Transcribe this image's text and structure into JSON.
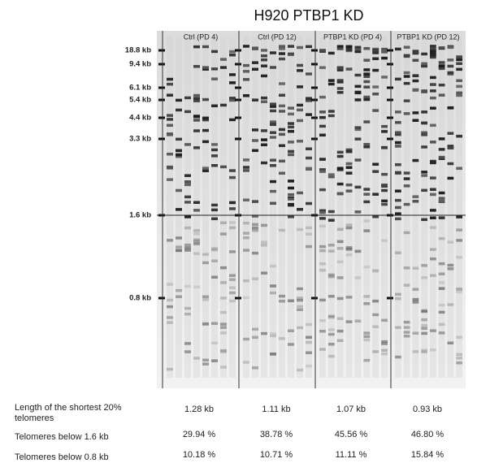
{
  "header": {
    "title": "H920 PTBP1 KD"
  },
  "lanes": [
    "Ctrl (PD 4)",
    "Ctrl (PD 12)",
    "PTBP1 KD (PD 4)",
    "PTBP1 KD (PD 12)"
  ],
  "markers": [
    "18.8 kb",
    "9.4 kb",
    "6.1 kb",
    "5.4 kb",
    "4.4 kb",
    "3.3 kb",
    "1.6 kb",
    "0.8 kb"
  ],
  "table": {
    "rows": [
      [
        "Length of the shortest 20% telomeres",
        "1.28 kb",
        "1.11 kb",
        "1.07 kb",
        "0.93 kb"
      ],
      [
        "Telomeres below 1.6 kb",
        "29.94 %",
        "38.78 %",
        "45.56 %",
        "46.80 %"
      ],
      [
        "Telomeres below 0.8 kb",
        "10.18 %",
        "10.71 %",
        "11.11 %",
        "15.84 %"
      ]
    ]
  }
}
